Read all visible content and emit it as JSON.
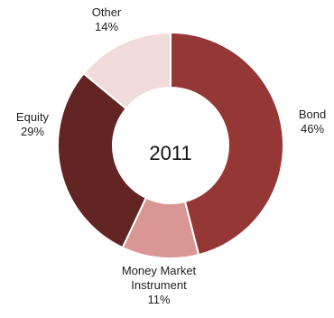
{
  "chart_data": {
    "type": "pie",
    "donut": true,
    "center_text": "2011",
    "categories": [
      "Bond",
      "Money Market Instrument",
      "Equity",
      "Other"
    ],
    "label_lines": [
      [
        "Bond",
        "46%"
      ],
      [
        "Money Market",
        "Instrument",
        "11%"
      ],
      [
        "Equity",
        "29%"
      ],
      [
        "Other",
        "14%"
      ]
    ],
    "values": [
      46,
      11,
      29,
      14
    ],
    "unit": "%",
    "colors": [
      "#953735",
      "#d99694",
      "#632523",
      "#f2dcdb"
    ],
    "start_angle_deg": 0,
    "direction": "clockwise",
    "slice_border_color": "#ffffff"
  }
}
